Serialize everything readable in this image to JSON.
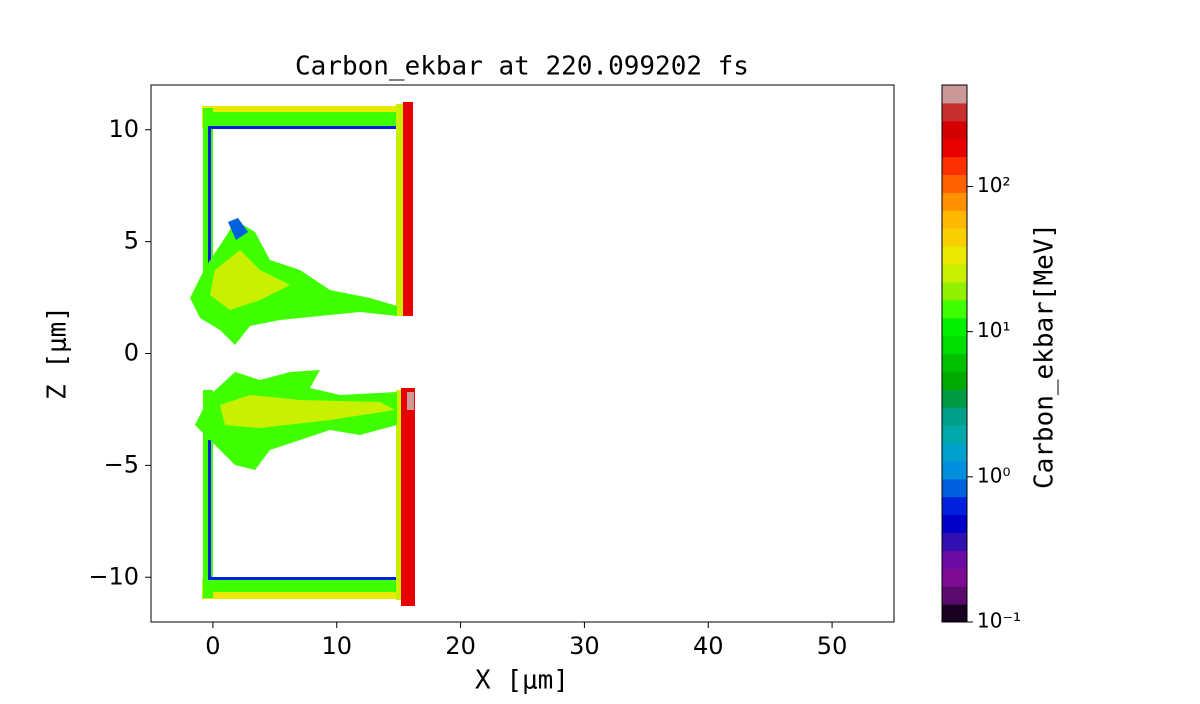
{
  "chart_data": {
    "type": "contour",
    "title": "Carbon_ekbar at 220.099202 fs",
    "x_label": "X  [μm]",
    "y_label": "Z  [μm]",
    "xlim": [
      -5,
      55
    ],
    "xticks": [
      0,
      10,
      20,
      30,
      40,
      50
    ],
    "ylim": [
      -12,
      12
    ],
    "yticks": [
      {
        "value": -10,
        "label": "−10"
      },
      {
        "value": -5,
        "label": "−5"
      },
      0,
      5,
      10
    ],
    "colorbar": {
      "label": "Carbon_ekbar[MeV]",
      "scale": "log",
      "clim": [
        0.1,
        500
      ],
      "ticks": [
        {
          "value": 0.1,
          "label": "10⁻¹"
        },
        {
          "value": 1,
          "label": "10⁰"
        },
        {
          "value": 10,
          "label": "10¹"
        },
        {
          "value": 100,
          "label": "10²"
        }
      ],
      "colormap": [
        "#1a0020",
        "#5a0a6a",
        "#7e0c92",
        "#6a0aa0",
        "#3010b0",
        "#0000c8",
        "#0020dd",
        "#0060dd",
        "#0090dd",
        "#00a0cc",
        "#00a8aa",
        "#00a088",
        "#009944",
        "#00aa00",
        "#00c000",
        "#00dd00",
        "#00f000",
        "#40ff00",
        "#90f000",
        "#c8f000",
        "#e8e800",
        "#f8d000",
        "#ffb800",
        "#ff9000",
        "#ff6000",
        "#ff3000",
        "#e80000",
        "#d40000",
        "#c83030",
        "#cc9999"
      ]
    }
  }
}
